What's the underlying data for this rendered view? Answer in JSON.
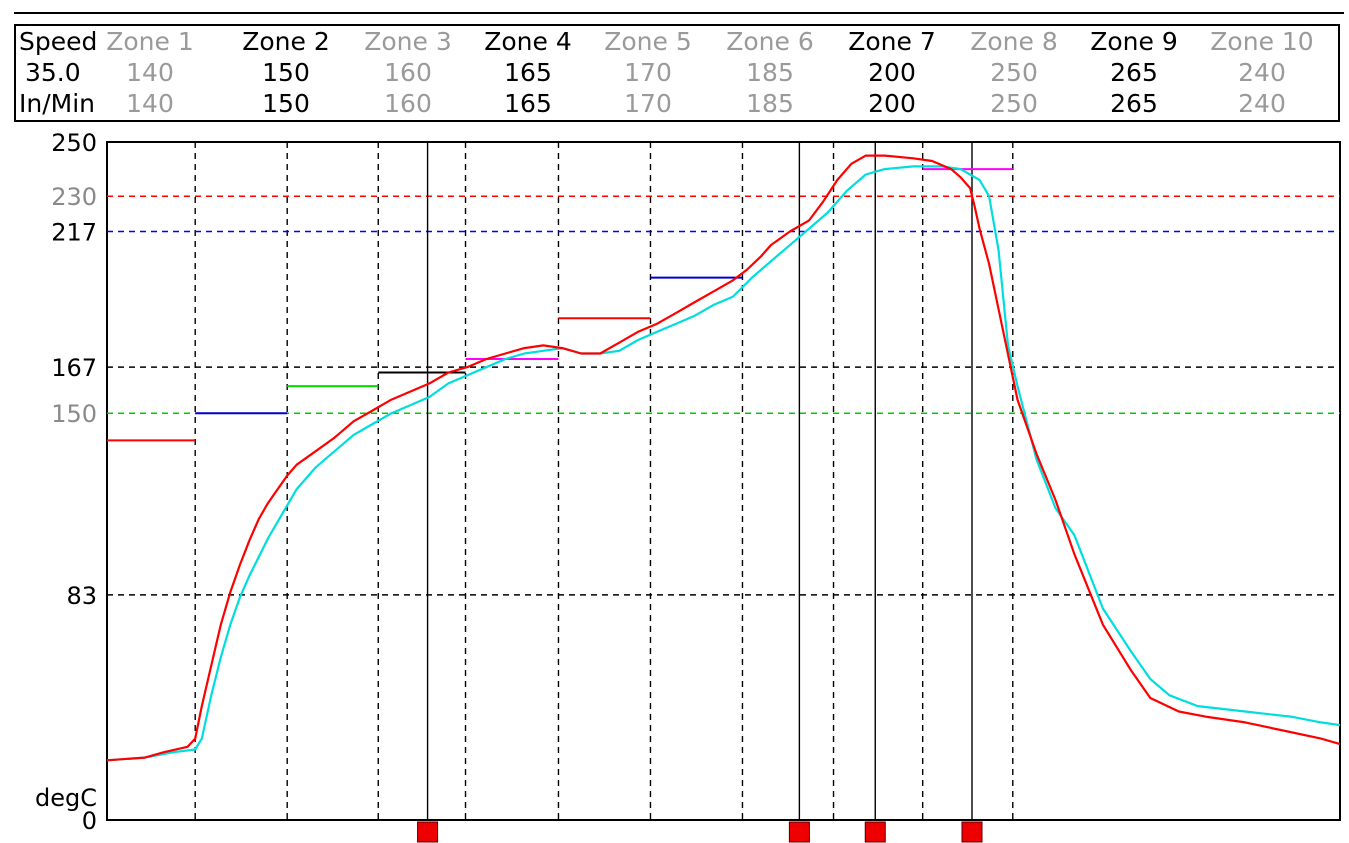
{
  "header": {
    "speed_label": "Speed",
    "speed_value": "35.0",
    "speed_unit": "In/Min",
    "zones": [
      {
        "name": "Zone 1",
        "top": "140",
        "bottom": "140",
        "emph": false
      },
      {
        "name": "Zone 2",
        "top": "150",
        "bottom": "150",
        "emph": true
      },
      {
        "name": "Zone 3",
        "top": "160",
        "bottom": "160",
        "emph": false
      },
      {
        "name": "Zone 4",
        "top": "165",
        "bottom": "165",
        "emph": true
      },
      {
        "name": "Zone 5",
        "top": "170",
        "bottom": "170",
        "emph": false
      },
      {
        "name": "Zone 6",
        "top": "185",
        "bottom": "185",
        "emph": false
      },
      {
        "name": "Zone 7",
        "top": "200",
        "bottom": "200",
        "emph": true
      },
      {
        "name": "Zone 8",
        "top": "250",
        "bottom": "250",
        "emph": false
      },
      {
        "name": "Zone 9",
        "top": "265",
        "bottom": "265",
        "emph": true
      },
      {
        "name": "Zone 10",
        "top": "240",
        "bottom": "240",
        "emph": false
      }
    ]
  },
  "chart_data": {
    "type": "line",
    "ylabel": "degC",
    "ylim": [
      0,
      250
    ],
    "xlim": [
      0,
      13
    ],
    "y_ticks": [
      {
        "value": 250,
        "label": "250",
        "color": "#000000"
      },
      {
        "value": 230,
        "label": "230",
        "color": "#8a8a8a"
      },
      {
        "value": 217,
        "label": "217",
        "color": "#000000"
      },
      {
        "value": 167,
        "label": "167",
        "color": "#000000"
      },
      {
        "value": 150,
        "label": "150",
        "color": "#8a8a8a"
      },
      {
        "value": 83,
        "label": "83",
        "color": "#000000"
      },
      {
        "value": 0,
        "label": "0",
        "color": "#000000"
      }
    ],
    "reference_lines": [
      {
        "value": 230,
        "color": "#ff0000"
      },
      {
        "value": 217,
        "color": "#0000ff"
      },
      {
        "value": 167,
        "color": "#000000"
      },
      {
        "value": 150,
        "color": "#00cc00"
      },
      {
        "value": 83,
        "color": "#000000"
      }
    ],
    "zone_boundaries": [
      0.93,
      1.9,
      2.86,
      3.78,
      4.76,
      5.73,
      6.7,
      7.66,
      8.6,
      9.55
    ],
    "zone_setpoints": [
      {
        "x": [
          0.0,
          0.93
        ],
        "value": 140,
        "color": "#ff0000"
      },
      {
        "x": [
          0.93,
          1.9
        ],
        "value": 150,
        "color": "#0000cc"
      },
      {
        "x": [
          1.9,
          2.86
        ],
        "value": 160,
        "color": "#00dd00"
      },
      {
        "x": [
          2.86,
          3.78
        ],
        "value": 165,
        "color": "#000000"
      },
      {
        "x": [
          3.78,
          4.76
        ],
        "value": 170,
        "color": "#ff00ff"
      },
      {
        "x": [
          4.76,
          5.73
        ],
        "value": 185,
        "color": "#ff0000"
      },
      {
        "x": [
          5.73,
          6.7
        ],
        "value": 200,
        "color": "#0000cc"
      },
      {
        "x": [
          8.6,
          9.55
        ],
        "value": 240,
        "color": "#ff00ff"
      }
    ],
    "markers": [
      3.38,
      7.3,
      8.1,
      9.12
    ],
    "series": [
      {
        "color": "#ff0000",
        "points": [
          [
            0.0,
            22
          ],
          [
            0.4,
            23
          ],
          [
            0.6,
            25
          ],
          [
            0.85,
            27
          ],
          [
            0.93,
            30
          ],
          [
            1.0,
            42
          ],
          [
            1.1,
            57
          ],
          [
            1.2,
            72
          ],
          [
            1.3,
            84
          ],
          [
            1.4,
            94
          ],
          [
            1.5,
            103
          ],
          [
            1.6,
            111
          ],
          [
            1.7,
            117
          ],
          [
            1.8,
            122
          ],
          [
            1.9,
            127
          ],
          [
            2.0,
            131
          ],
          [
            2.2,
            136
          ],
          [
            2.4,
            141
          ],
          [
            2.6,
            147
          ],
          [
            2.8,
            151
          ],
          [
            3.0,
            155
          ],
          [
            3.2,
            158
          ],
          [
            3.4,
            161
          ],
          [
            3.6,
            165
          ],
          [
            3.8,
            167
          ],
          [
            4.0,
            170
          ],
          [
            4.2,
            172
          ],
          [
            4.4,
            174
          ],
          [
            4.6,
            175
          ],
          [
            4.8,
            174
          ],
          [
            5.0,
            172
          ],
          [
            5.2,
            172
          ],
          [
            5.4,
            176
          ],
          [
            5.6,
            180
          ],
          [
            5.8,
            183
          ],
          [
            6.0,
            187
          ],
          [
            6.2,
            191
          ],
          [
            6.4,
            195
          ],
          [
            6.6,
            199
          ],
          [
            6.75,
            203
          ],
          [
            6.9,
            208
          ],
          [
            7.0,
            212
          ],
          [
            7.2,
            217
          ],
          [
            7.4,
            221
          ],
          [
            7.55,
            228
          ],
          [
            7.7,
            236
          ],
          [
            7.85,
            242
          ],
          [
            8.0,
            245
          ],
          [
            8.2,
            245
          ],
          [
            8.5,
            244
          ],
          [
            8.7,
            243
          ],
          [
            8.9,
            240
          ],
          [
            9.0,
            237
          ],
          [
            9.1,
            233
          ],
          [
            9.15,
            226
          ],
          [
            9.2,
            218
          ],
          [
            9.3,
            205
          ],
          [
            9.45,
            180
          ],
          [
            9.6,
            155
          ],
          [
            9.8,
            135
          ],
          [
            10.0,
            118
          ],
          [
            10.2,
            98
          ],
          [
            10.5,
            72
          ],
          [
            10.8,
            55
          ],
          [
            11.0,
            45
          ],
          [
            11.3,
            40
          ],
          [
            11.6,
            38
          ],
          [
            12.0,
            36
          ],
          [
            12.4,
            33
          ],
          [
            12.8,
            30
          ],
          [
            13.0,
            28
          ]
        ]
      },
      {
        "color": "#00dddd",
        "points": [
          [
            0.0,
            22
          ],
          [
            0.4,
            23
          ],
          [
            0.7,
            25
          ],
          [
            0.93,
            26
          ],
          [
            1.0,
            30
          ],
          [
            1.1,
            46
          ],
          [
            1.2,
            60
          ],
          [
            1.3,
            72
          ],
          [
            1.4,
            82
          ],
          [
            1.5,
            90
          ],
          [
            1.6,
            97
          ],
          [
            1.7,
            104
          ],
          [
            1.8,
            110
          ],
          [
            1.9,
            116
          ],
          [
            2.0,
            122
          ],
          [
            2.2,
            130
          ],
          [
            2.4,
            136
          ],
          [
            2.6,
            142
          ],
          [
            2.8,
            146
          ],
          [
            3.0,
            150
          ],
          [
            3.2,
            153
          ],
          [
            3.4,
            156
          ],
          [
            3.6,
            161
          ],
          [
            3.8,
            164
          ],
          [
            4.0,
            167
          ],
          [
            4.2,
            170
          ],
          [
            4.4,
            172
          ],
          [
            4.6,
            173
          ],
          [
            4.8,
            174
          ],
          [
            5.0,
            172
          ],
          [
            5.2,
            172
          ],
          [
            5.4,
            173
          ],
          [
            5.6,
            177
          ],
          [
            5.8,
            180
          ],
          [
            6.0,
            183
          ],
          [
            6.2,
            186
          ],
          [
            6.4,
            190
          ],
          [
            6.6,
            193
          ],
          [
            6.8,
            200
          ],
          [
            7.0,
            206
          ],
          [
            7.2,
            212
          ],
          [
            7.4,
            218
          ],
          [
            7.6,
            224
          ],
          [
            7.8,
            232
          ],
          [
            8.0,
            238
          ],
          [
            8.2,
            240
          ],
          [
            8.5,
            241
          ],
          [
            8.8,
            241
          ],
          [
            9.0,
            240
          ],
          [
            9.2,
            236
          ],
          [
            9.3,
            230
          ],
          [
            9.4,
            210
          ],
          [
            9.5,
            175
          ],
          [
            9.6,
            160
          ],
          [
            9.8,
            133
          ],
          [
            10.0,
            115
          ],
          [
            10.2,
            105
          ],
          [
            10.5,
            78
          ],
          [
            10.8,
            62
          ],
          [
            11.0,
            52
          ],
          [
            11.2,
            46
          ],
          [
            11.5,
            42
          ],
          [
            12.0,
            40
          ],
          [
            12.5,
            38
          ],
          [
            12.8,
            36
          ],
          [
            13.0,
            35
          ]
        ]
      }
    ]
  }
}
